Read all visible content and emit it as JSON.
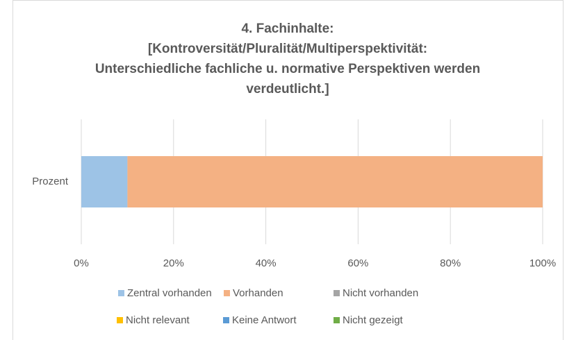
{
  "chart_data": {
    "type": "stacked_bar_horizontal",
    "title": [
      "4. Fachinhalte:",
      "[Kontroversität/Pluralität/Multiperspektivität:",
      "Unterschiedliche fachliche u. normative Perspektiven werden",
      "verdeutlicht.]"
    ],
    "categories": [
      "Prozent"
    ],
    "series": [
      {
        "name": "Zentral vorhanden",
        "color": "#9dc3e6",
        "values": [
          10
        ]
      },
      {
        "name": "Vorhanden",
        "color": "#f4b183",
        "values": [
          90
        ]
      },
      {
        "name": "Nicht vorhanden",
        "color": "#a5a5a5",
        "values": [
          0
        ]
      },
      {
        "name": "Nicht relevant",
        "color": "#ffc000",
        "values": [
          0
        ]
      },
      {
        "name": "Keine Antwort",
        "color": "#5b9bd5",
        "values": [
          0
        ]
      },
      {
        "name": "Nicht gezeigt",
        "color": "#70ad47",
        "values": [
          0
        ]
      }
    ],
    "xlim": [
      0,
      100
    ],
    "xticks": [
      {
        "value": 0,
        "label": "0%"
      },
      {
        "value": 20,
        "label": "20%"
      },
      {
        "value": 40,
        "label": "40%"
      },
      {
        "value": 60,
        "label": "60%"
      },
      {
        "value": 80,
        "label": "80%"
      },
      {
        "value": 100,
        "label": "100%"
      }
    ],
    "grid": true,
    "legend": "bottom"
  }
}
